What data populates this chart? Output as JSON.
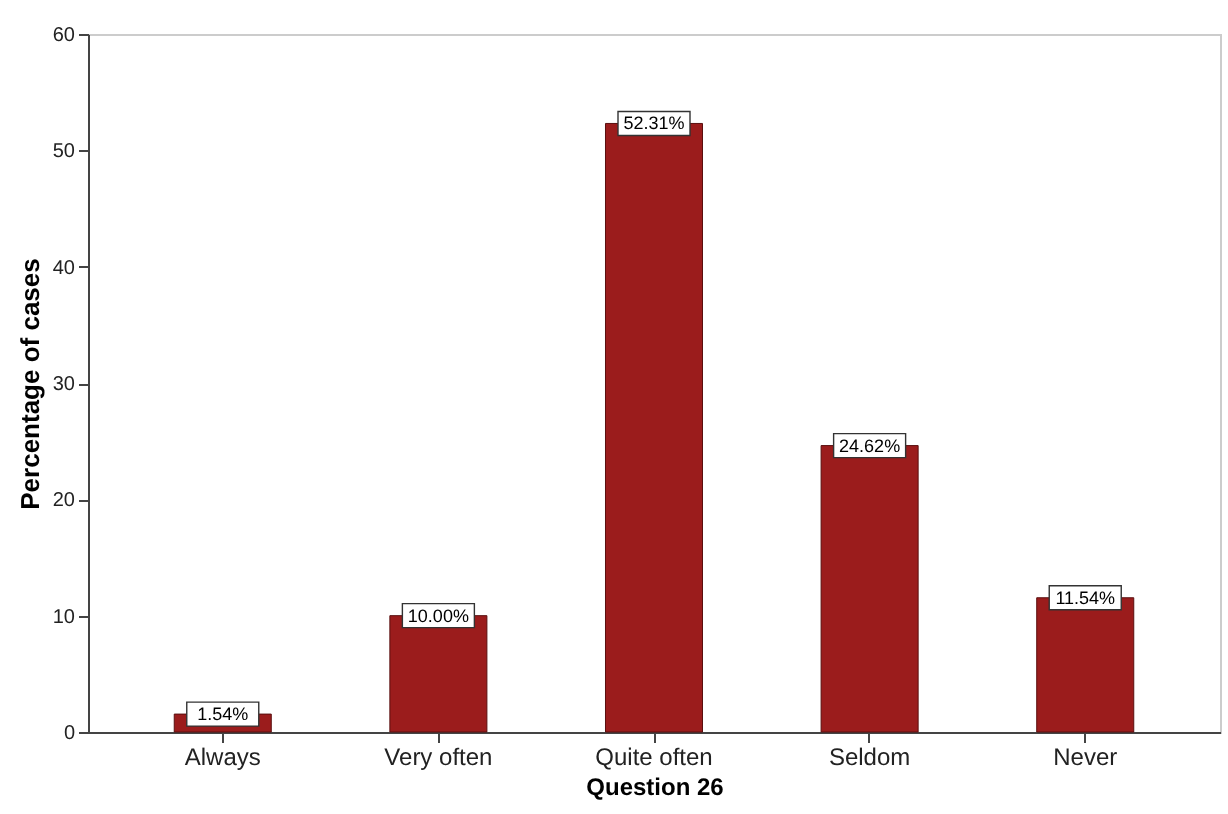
{
  "chart_data": {
    "type": "bar",
    "xlabel": "Question 26",
    "ylabel": "Percentage of cases",
    "categories": [
      "Always",
      "Very often",
      "Quite often",
      "Seldom",
      "Never"
    ],
    "values": [
      1.54,
      10.0,
      52.31,
      24.62,
      11.54
    ],
    "value_labels": [
      "1.54%",
      "10.00%",
      "52.31%",
      "24.62%",
      "11.54%"
    ],
    "color": "#9b1c1c",
    "ylim": [
      0,
      60
    ],
    "yticks": [
      0,
      10,
      20,
      30,
      40,
      50,
      60
    ],
    "grid": false
  }
}
